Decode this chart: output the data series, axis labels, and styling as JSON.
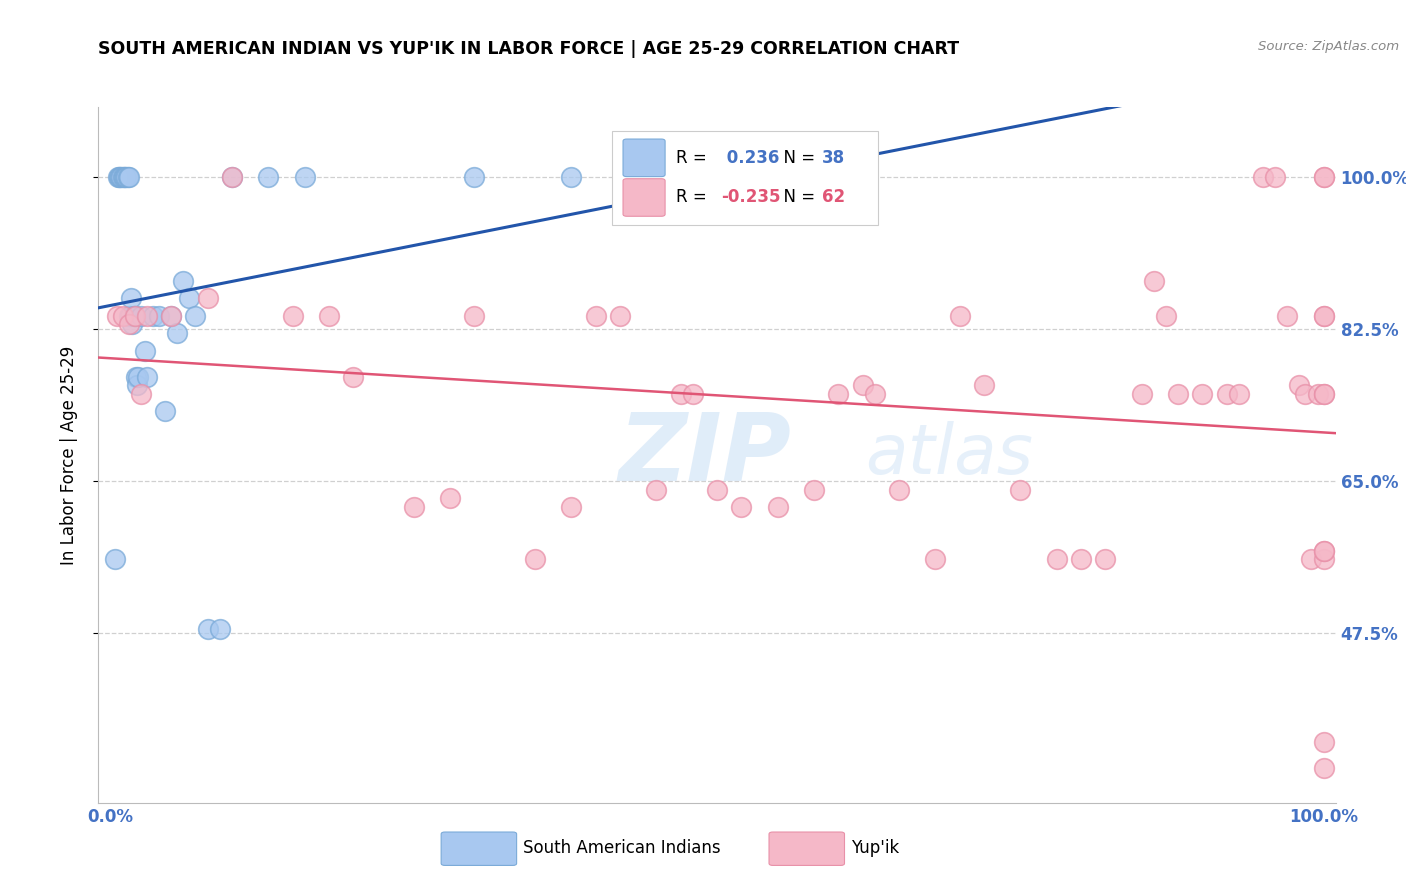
{
  "title": "SOUTH AMERICAN INDIAN VS YUP'IK IN LABOR FORCE | AGE 25-29 CORRELATION CHART",
  "source": "Source: ZipAtlas.com",
  "ylabel": "In Labor Force | Age 25-29",
  "ytick_labels": [
    "100.0%",
    "82.5%",
    "65.0%",
    "47.5%"
  ],
  "ytick_values": [
    1.0,
    0.825,
    0.65,
    0.475
  ],
  "xlim": [
    -0.01,
    1.01
  ],
  "ylim": [
    0.28,
    1.08
  ],
  "blue_R": 0.236,
  "blue_N": 38,
  "pink_R": -0.235,
  "pink_N": 62,
  "blue_color": "#A8C8F0",
  "pink_color": "#F5B8C8",
  "blue_edge_color": "#7AAAD8",
  "pink_edge_color": "#E890A8",
  "blue_line_color": "#2255AA",
  "pink_line_color": "#E05575",
  "watermark_color": "#D0E8F8",
  "tick_color": "#4472C4",
  "grid_color": "#D0D0D0",
  "blue_scatter_x": [
    0.004,
    0.006,
    0.007,
    0.008,
    0.009,
    0.01,
    0.011,
    0.012,
    0.013,
    0.014,
    0.015,
    0.015,
    0.016,
    0.017,
    0.018,
    0.019,
    0.02,
    0.021,
    0.022,
    0.023,
    0.025,
    0.028,
    0.03,
    0.035,
    0.04,
    0.045,
    0.05,
    0.055,
    0.06,
    0.065,
    0.07,
    0.08,
    0.09,
    0.1,
    0.13,
    0.16,
    0.3,
    0.38
  ],
  "blue_scatter_y": [
    0.56,
    1.0,
    1.0,
    1.0,
    1.0,
    1.0,
    1.0,
    1.0,
    1.0,
    1.0,
    1.0,
    0.84,
    0.84,
    0.86,
    0.83,
    0.84,
    0.84,
    0.77,
    0.76,
    0.77,
    0.84,
    0.8,
    0.77,
    0.84,
    0.84,
    0.73,
    0.84,
    0.82,
    0.88,
    0.86,
    0.84,
    0.48,
    0.48,
    1.0,
    1.0,
    1.0,
    1.0,
    1.0
  ],
  "pink_scatter_x": [
    0.005,
    0.01,
    0.015,
    0.02,
    0.025,
    0.03,
    0.05,
    0.08,
    0.1,
    0.15,
    0.18,
    0.2,
    0.25,
    0.28,
    0.3,
    0.35,
    0.38,
    0.4,
    0.42,
    0.45,
    0.47,
    0.48,
    0.5,
    0.52,
    0.55,
    0.58,
    0.6,
    0.62,
    0.63,
    0.65,
    0.68,
    0.7,
    0.72,
    0.75,
    0.78,
    0.8,
    0.82,
    0.85,
    0.86,
    0.87,
    0.88,
    0.9,
    0.92,
    0.93,
    0.95,
    0.96,
    0.97,
    0.98,
    0.985,
    0.99,
    0.995,
    1.0,
    1.0,
    1.0,
    1.0,
    1.0,
    1.0,
    1.0,
    1.0,
    1.0,
    1.0,
    1.0
  ],
  "pink_scatter_y": [
    0.84,
    0.84,
    0.83,
    0.84,
    0.75,
    0.84,
    0.84,
    0.86,
    1.0,
    0.84,
    0.84,
    0.77,
    0.62,
    0.63,
    0.84,
    0.56,
    0.62,
    0.84,
    0.84,
    0.64,
    0.75,
    0.75,
    0.64,
    0.62,
    0.62,
    0.64,
    0.75,
    0.76,
    0.75,
    0.64,
    0.56,
    0.84,
    0.76,
    0.64,
    0.56,
    0.56,
    0.56,
    0.75,
    0.88,
    0.84,
    0.75,
    0.75,
    0.75,
    0.75,
    1.0,
    1.0,
    0.84,
    0.76,
    0.75,
    0.56,
    0.75,
    1.0,
    1.0,
    0.84,
    0.84,
    0.75,
    0.75,
    0.56,
    0.57,
    0.57,
    0.35,
    0.32
  ]
}
